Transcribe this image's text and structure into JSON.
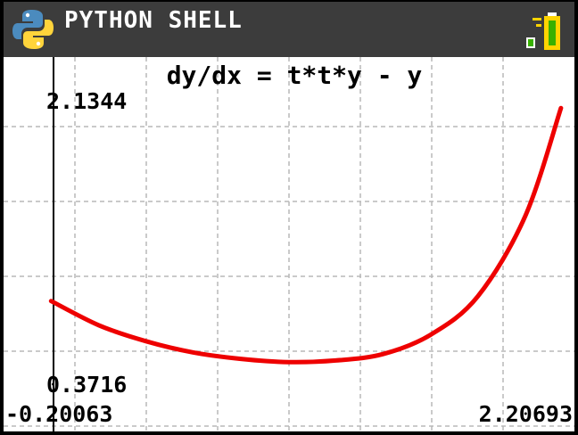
{
  "app": {
    "title": "PYTHON SHELL",
    "icons": [
      "python-logo-icon",
      "battery-icon"
    ],
    "colors": {
      "titlebar": "#3c3c3c",
      "curve": "#ee0000",
      "grid": "#b8b8b8"
    }
  },
  "chart_data": {
    "type": "line",
    "title": "dy/dx = t*t*y - y",
    "x_axis": {
      "min_label": "-0.20063",
      "max_label": "2.20693",
      "range": [
        -0.20063,
        2.20693
      ]
    },
    "y_axis": {
      "min_label": "0.3716",
      "max_label": "2.1344",
      "range": [
        0.3716,
        2.1344
      ]
    },
    "grid": true,
    "series": [
      {
        "color": "#ee0000",
        "x": [
          0.0,
          0.2,
          0.4,
          0.6,
          0.8,
          1.0,
          1.2,
          1.4,
          1.6,
          1.8,
          2.0,
          2.15
        ],
        "y": [
          0.85,
          0.7,
          0.6,
          0.53,
          0.49,
          0.47,
          0.48,
          0.52,
          0.64,
          0.88,
          1.38,
          2.05
        ]
      }
    ]
  }
}
